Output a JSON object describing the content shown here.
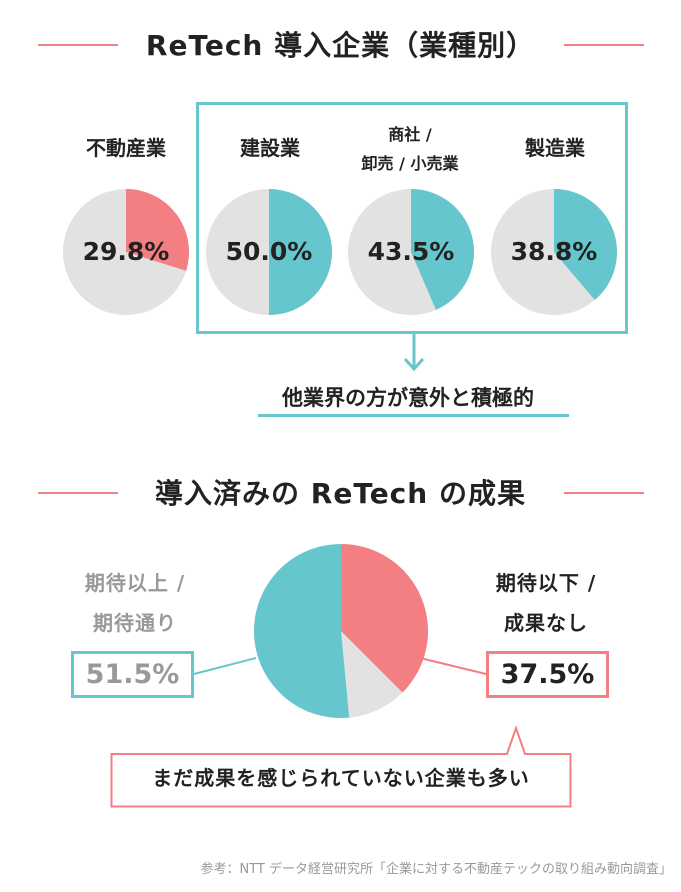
{
  "colors": {
    "accent_pink": "#f47f83",
    "accent_teal": "#66c6ce",
    "neutral_gray": "#e2e2e2",
    "muted_text": "#999999",
    "text": "#222222"
  },
  "section1": {
    "title": "ReTech 導入企業（業種別）",
    "note": "他業界の方が意外と積極的"
  },
  "section2": {
    "title": "導入済みの ReTech の成果",
    "left_label_line1": "期待以上 /",
    "left_label_line2": "期待通り",
    "left_value": "51.5%",
    "right_label_line1": "期待以下 /",
    "right_label_line2": "成果なし",
    "right_value": "37.5%",
    "callout": "まだ成果を感じられていない企業も多い"
  },
  "source": "参考：NTT データ経営研究所「企業に対する不動産テックの取り組み動向調査」",
  "chart_data": [
    {
      "type": "pie",
      "title": "ReTech 導入企業（業種別）",
      "categories": [
        "不動産業",
        "建設業",
        "商社 / 卸売 / 小売業",
        "製造業"
      ],
      "values": [
        29.8,
        50.0,
        43.5,
        38.8
      ],
      "labels": [
        "29.8%",
        "50.0%",
        "43.5%",
        "38.8%"
      ],
      "label_lines": [
        [
          "不動産業"
        ],
        [
          "建設業"
        ],
        [
          "商社 /",
          "卸売 / 小売業"
        ],
        [
          "製造業"
        ]
      ],
      "slice_colors": [
        "#f47f83",
        "#66c6ce",
        "#66c6ce",
        "#66c6ce"
      ],
      "unit": "%"
    },
    {
      "type": "pie",
      "title": "導入済みの ReTech の成果",
      "categories": [
        "期待以上 / 期待通り",
        "期待以下 / 成果なし"
      ],
      "values": [
        51.5,
        37.5
      ],
      "colors": [
        "#66c6ce",
        "#f47f83"
      ],
      "unit": "%"
    }
  ]
}
